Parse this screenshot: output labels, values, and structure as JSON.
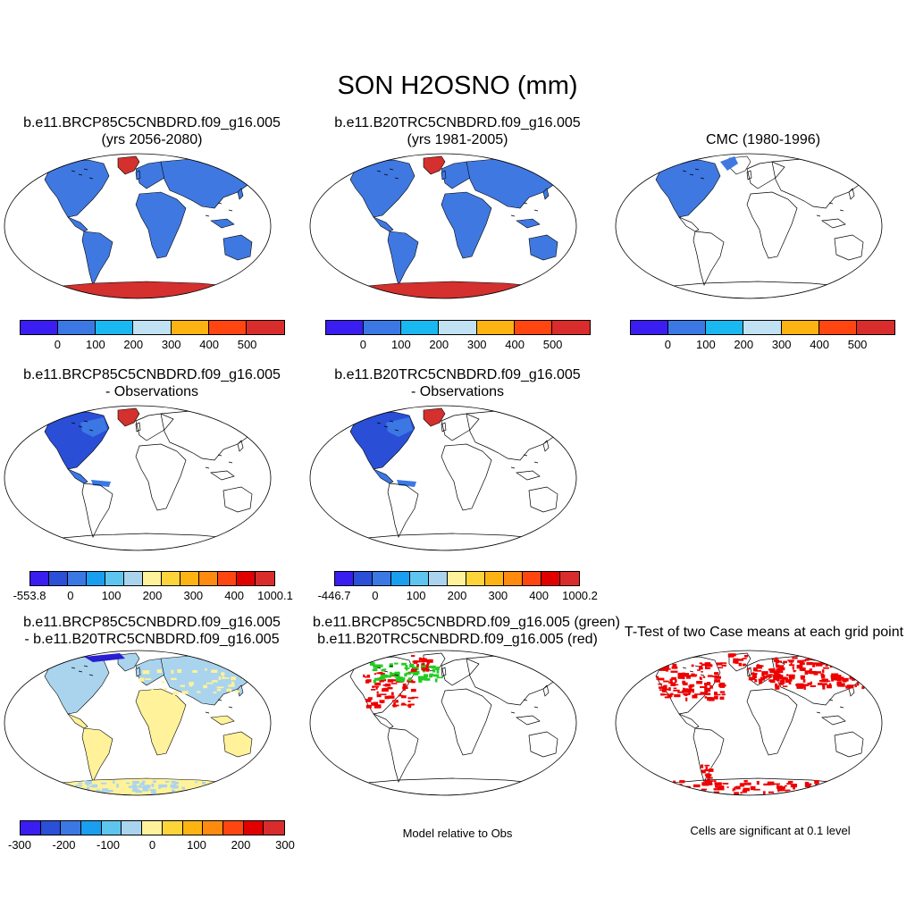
{
  "title": "SON H2OSNO (mm)",
  "panels": [
    {
      "id": "p1",
      "title1": "b.e11.BRCP85C5CNBDRD.f09_g16.005",
      "title2": "(yrs 2056-2080)",
      "fill": "full",
      "colors": {
        "land": "#3f78e0",
        "hi": "#d3302e"
      }
    },
    {
      "id": "p2",
      "title1": "b.e11.B20TRC5CNBDRD.f09_g16.005",
      "title2": "(yrs 1981-2005)",
      "fill": "full",
      "colors": {
        "land": "#3f78e0",
        "hi": "#d3302e"
      }
    },
    {
      "id": "p3",
      "title1": "CMC (1980-1996)",
      "title2": "",
      "fill": "na",
      "colors": {
        "land": "#3f78e0"
      }
    },
    {
      "id": "p4",
      "title1": "b.e11.BRCP85C5CNBDRD.f09_g16.005",
      "title2": "- Observations",
      "fill": "na-diff",
      "colors": {
        "land": "#2a4fd6",
        "hi": "#d3302e"
      }
    },
    {
      "id": "p5",
      "title1": "b.e11.B20TRC5CNBDRD.f09_g16.005",
      "title2": "- Observations",
      "fill": "na-diff",
      "colors": {
        "land": "#2a4fd6",
        "hi": "#d3302e"
      }
    },
    {
      "id": "p7",
      "title1": "b.e11.BRCP85C5CNBDRD.f09_g16.005",
      "title2": "- b.e11.B20TRC5CNBDRD.f09_g16.005",
      "fill": "diff",
      "colors": {
        "land": "#fff29a",
        "north": "#aad4ee",
        "ant": "#fff29a"
      }
    },
    {
      "id": "p8",
      "title1": "b.e11.BRCP85C5CNBDRD.f09_g16.005 (green)",
      "title2": "b.e11.B20TRC5CNBDRD.f09_g16.005 (red)",
      "fill": "mask-gr",
      "colors": {
        "red": "#ee0000",
        "green": "#22cc22"
      }
    },
    {
      "id": "p9",
      "title1": "T-Test of two Case means at each grid point",
      "title2": "",
      "fill": "mask-r",
      "colors": {
        "red": "#ee0000"
      }
    }
  ],
  "colorbars": [
    {
      "id": "cb1",
      "colors": [
        "#3a1df0",
        "#3b78e4",
        "#1ab8f0",
        "#c0e2f2",
        "#fdb413",
        "#ff4610",
        "#d92c2c"
      ],
      "labels": [
        "0",
        "100",
        "200",
        "300",
        "400",
        "500"
      ]
    },
    {
      "id": "cb2",
      "colors": [
        "#3a1df0",
        "#3b78e4",
        "#1ab8f0",
        "#c0e2f2",
        "#fdb413",
        "#ff4610",
        "#d92c2c"
      ],
      "labels": [
        "0",
        "100",
        "200",
        "300",
        "400",
        "500"
      ]
    },
    {
      "id": "cb3",
      "colors": [
        "#3a1df0",
        "#3b78e4",
        "#1ab8f0",
        "#c0e2f2",
        "#fdb413",
        "#ff4610",
        "#d92c2c"
      ],
      "labels": [
        "0",
        "100",
        "200",
        "300",
        "400",
        "500"
      ]
    },
    {
      "id": "cb4",
      "colors": [
        "#3a1df0",
        "#2b4fd6",
        "#3b78e4",
        "#1a9ef0",
        "#5ec6ee",
        "#aad4ee",
        "#fff29a",
        "#fdd43a",
        "#fdb413",
        "#ff8a10",
        "#ff4610",
        "#e00000",
        "#d92c2c"
      ],
      "labels": [
        "-553.8",
        "0",
        "100",
        "200",
        "300",
        "400",
        "1000.1"
      ]
    },
    {
      "id": "cb5",
      "colors": [
        "#3a1df0",
        "#2b4fd6",
        "#3b78e4",
        "#1a9ef0",
        "#5ec6ee",
        "#aad4ee",
        "#fff29a",
        "#fdd43a",
        "#fdb413",
        "#ff8a10",
        "#ff4610",
        "#e00000",
        "#d92c2c"
      ],
      "labels": [
        "-446.7",
        "0",
        "100",
        "200",
        "300",
        "400",
        "1000.2"
      ]
    },
    {
      "id": "cb7",
      "colors": [
        "#3a1df0",
        "#2b4fd6",
        "#3b78e4",
        "#1a9ef0",
        "#5ec6ee",
        "#aad4ee",
        "#fff29a",
        "#fdd43a",
        "#fdb413",
        "#ff8a10",
        "#ff4610",
        "#e00000",
        "#d92c2c"
      ],
      "labels": [
        "-300",
        "-200",
        "-100",
        "0",
        "100",
        "200",
        "300"
      ]
    }
  ],
  "notes": {
    "model_relative": "Model relative to Obs",
    "significance": "Cells are significant at 0.1 level"
  }
}
